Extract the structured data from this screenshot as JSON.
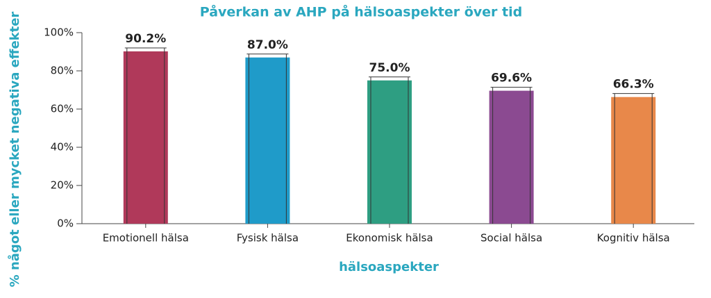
{
  "chart_data": {
    "type": "bar",
    "title": "Påverkan av AHP på hälsoaspekter över tid",
    "x_label": "hälsoaspekter",
    "y_label": "% något eller mycket negativa effekter",
    "categories": [
      "Emotionell hälsa",
      "Fysisk hälsa",
      "Ekonomisk hälsa",
      "Social hälsa",
      "Kognitiv hälsa"
    ],
    "values": [
      90.2,
      87.0,
      75.0,
      69.6,
      66.3
    ],
    "value_labels": [
      "90.2%",
      "87.0%",
      "75.0%",
      "69.6%",
      "66.3%"
    ],
    "colors": [
      "#b0395a",
      "#1f9bc9",
      "#2e9e82",
      "#8b4a91",
      "#e8884a"
    ],
    "ylim": [
      0,
      100
    ],
    "yticks": [
      {
        "value": 0,
        "label": "0%"
      },
      {
        "value": 20,
        "label": "20%"
      },
      {
        "value": 40,
        "label": "40%"
      },
      {
        "value": 60,
        "label": "60%"
      },
      {
        "value": 80,
        "label": "80%"
      },
      {
        "value": 100,
        "label": "100%"
      }
    ],
    "grid": false
  }
}
